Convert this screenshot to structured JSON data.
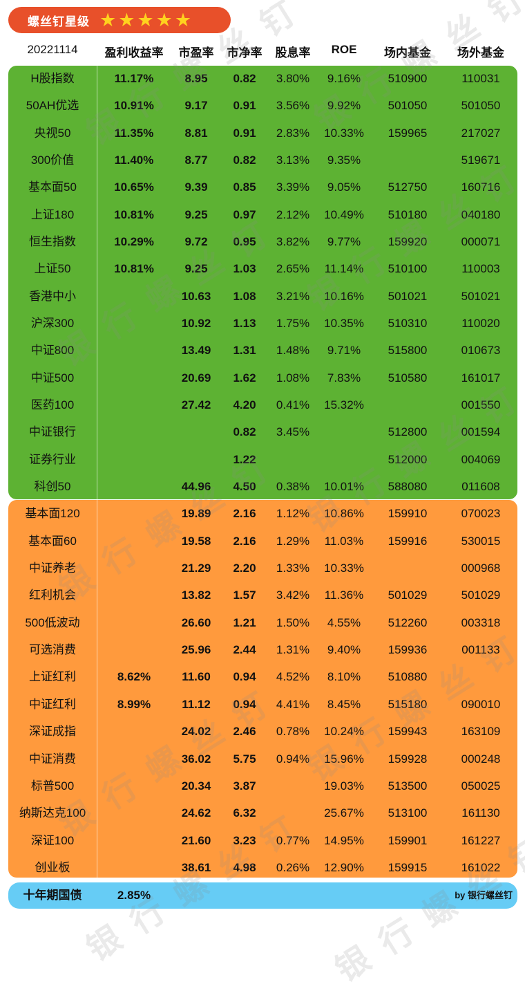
{
  "title": "螺丝钉星级",
  "star_count": 5,
  "colors": {
    "title_bg": "#e8502a",
    "green": "#5db233",
    "orange": "#ff9a3d",
    "blue": "#66ccf5",
    "star": "#ffd21e"
  },
  "headers": {
    "date": "20221114",
    "yield": "盈利收益率",
    "pe": "市盈率",
    "pb": "市净率",
    "div": "股息率",
    "roe": "ROE",
    "in": "场内基金",
    "out": "场外基金"
  },
  "rows": [
    {
      "name": "H股指数",
      "yield": "11.17%",
      "pe": "8.95",
      "pb": "0.82",
      "div": "3.80%",
      "roe": "9.16%",
      "in": "510900",
      "out": "110031"
    },
    {
      "name": "50AH优选",
      "yield": "10.91%",
      "pe": "9.17",
      "pb": "0.91",
      "div": "3.56%",
      "roe": "9.92%",
      "in": "501050",
      "out": "501050"
    },
    {
      "name": "央视50",
      "yield": "11.35%",
      "pe": "8.81",
      "pb": "0.91",
      "div": "2.83%",
      "roe": "10.33%",
      "in": "159965",
      "out": "217027"
    },
    {
      "name": "300价值",
      "yield": "11.40%",
      "pe": "8.77",
      "pb": "0.82",
      "div": "3.13%",
      "roe": "9.35%",
      "in": "",
      "out": "519671"
    },
    {
      "name": "基本面50",
      "yield": "10.65%",
      "pe": "9.39",
      "pb": "0.85",
      "div": "3.39%",
      "roe": "9.05%",
      "in": "512750",
      "out": "160716"
    },
    {
      "name": "上证180",
      "yield": "10.81%",
      "pe": "9.25",
      "pb": "0.97",
      "div": "2.12%",
      "roe": "10.49%",
      "in": "510180",
      "out": "040180"
    },
    {
      "name": "恒生指数",
      "yield": "10.29%",
      "pe": "9.72",
      "pb": "0.95",
      "div": "3.82%",
      "roe": "9.77%",
      "in": "159920",
      "out": "000071"
    },
    {
      "name": "上证50",
      "yield": "10.81%",
      "pe": "9.25",
      "pb": "1.03",
      "div": "2.65%",
      "roe": "11.14%",
      "in": "510100",
      "out": "110003"
    },
    {
      "name": "香港中小",
      "yield": "",
      "pe": "10.63",
      "pb": "1.08",
      "div": "3.21%",
      "roe": "10.16%",
      "in": "501021",
      "out": "501021"
    },
    {
      "name": "沪深300",
      "yield": "",
      "pe": "10.92",
      "pb": "1.13",
      "div": "1.75%",
      "roe": "10.35%",
      "in": "510310",
      "out": "110020"
    },
    {
      "name": "中证800",
      "yield": "",
      "pe": "13.49",
      "pb": "1.31",
      "div": "1.48%",
      "roe": "9.71%",
      "in": "515800",
      "out": "010673"
    },
    {
      "name": "中证500",
      "yield": "",
      "pe": "20.69",
      "pb": "1.62",
      "div": "1.08%",
      "roe": "7.83%",
      "in": "510580",
      "out": "161017"
    },
    {
      "name": "医药100",
      "yield": "",
      "pe": "27.42",
      "pb": "4.20",
      "div": "0.41%",
      "roe": "15.32%",
      "in": "",
      "out": "001550"
    },
    {
      "name": "中证银行",
      "yield": "",
      "pe": "",
      "pb": "0.82",
      "div": "3.45%",
      "roe": "",
      "in": "512800",
      "out": "001594"
    },
    {
      "name": "证券行业",
      "yield": "",
      "pe": "",
      "pb": "1.22",
      "div": "",
      "roe": "",
      "in": "512000",
      "out": "004069"
    },
    {
      "name": "科创50",
      "yield": "",
      "pe": "44.96",
      "pb": "4.50",
      "div": "0.38%",
      "roe": "10.01%",
      "in": "588080",
      "out": "011608"
    },
    {
      "name": "基本面120",
      "yield": "",
      "pe": "19.89",
      "pb": "2.16",
      "div": "1.12%",
      "roe": "10.86%",
      "in": "159910",
      "out": "070023"
    },
    {
      "name": "基本面60",
      "yield": "",
      "pe": "19.58",
      "pb": "2.16",
      "div": "1.29%",
      "roe": "11.03%",
      "in": "159916",
      "out": "530015"
    },
    {
      "name": "中证养老",
      "yield": "",
      "pe": "21.29",
      "pb": "2.20",
      "div": "1.33%",
      "roe": "10.33%",
      "in": "",
      "out": "000968"
    },
    {
      "name": "红利机会",
      "yield": "",
      "pe": "13.82",
      "pb": "1.57",
      "div": "3.42%",
      "roe": "11.36%",
      "in": "501029",
      "out": "501029"
    },
    {
      "name": "500低波动",
      "yield": "",
      "pe": "26.60",
      "pb": "1.21",
      "div": "1.50%",
      "roe": "4.55%",
      "in": "512260",
      "out": "003318"
    },
    {
      "name": "可选消费",
      "yield": "",
      "pe": "25.96",
      "pb": "2.44",
      "div": "1.31%",
      "roe": "9.40%",
      "in": "159936",
      "out": "001133"
    },
    {
      "name": "上证红利",
      "yield": "8.62%",
      "pe": "11.60",
      "pb": "0.94",
      "div": "4.52%",
      "roe": "8.10%",
      "in": "510880",
      "out": ""
    },
    {
      "name": "中证红利",
      "yield": "8.99%",
      "pe": "11.12",
      "pb": "0.94",
      "div": "4.41%",
      "roe": "8.45%",
      "in": "515180",
      "out": "090010"
    },
    {
      "name": "深证成指",
      "yield": "",
      "pe": "24.02",
      "pb": "2.46",
      "div": "0.78%",
      "roe": "10.24%",
      "in": "159943",
      "out": "163109"
    },
    {
      "name": "中证消费",
      "yield": "",
      "pe": "36.02",
      "pb": "5.75",
      "div": "0.94%",
      "roe": "15.96%",
      "in": "159928",
      "out": "000248"
    },
    {
      "name": "标普500",
      "yield": "",
      "pe": "20.34",
      "pb": "3.87",
      "div": "",
      "roe": "19.03%",
      "in": "513500",
      "out": "050025"
    },
    {
      "name": "纳斯达克100",
      "yield": "",
      "pe": "24.62",
      "pb": "6.32",
      "div": "",
      "roe": "25.67%",
      "in": "513100",
      "out": "161130"
    },
    {
      "name": "深证100",
      "yield": "",
      "pe": "21.60",
      "pb": "3.23",
      "div": "0.77%",
      "roe": "14.95%",
      "in": "159901",
      "out": "161227"
    },
    {
      "name": "创业板",
      "yield": "",
      "pe": "38.61",
      "pb": "4.98",
      "div": "0.26%",
      "roe": "12.90%",
      "in": "159915",
      "out": "161022"
    }
  ],
  "bond": {
    "name": "十年期国债",
    "value": "2.85%"
  },
  "byline": "by 银行螺丝钉",
  "watermark": "银行螺丝钉"
}
